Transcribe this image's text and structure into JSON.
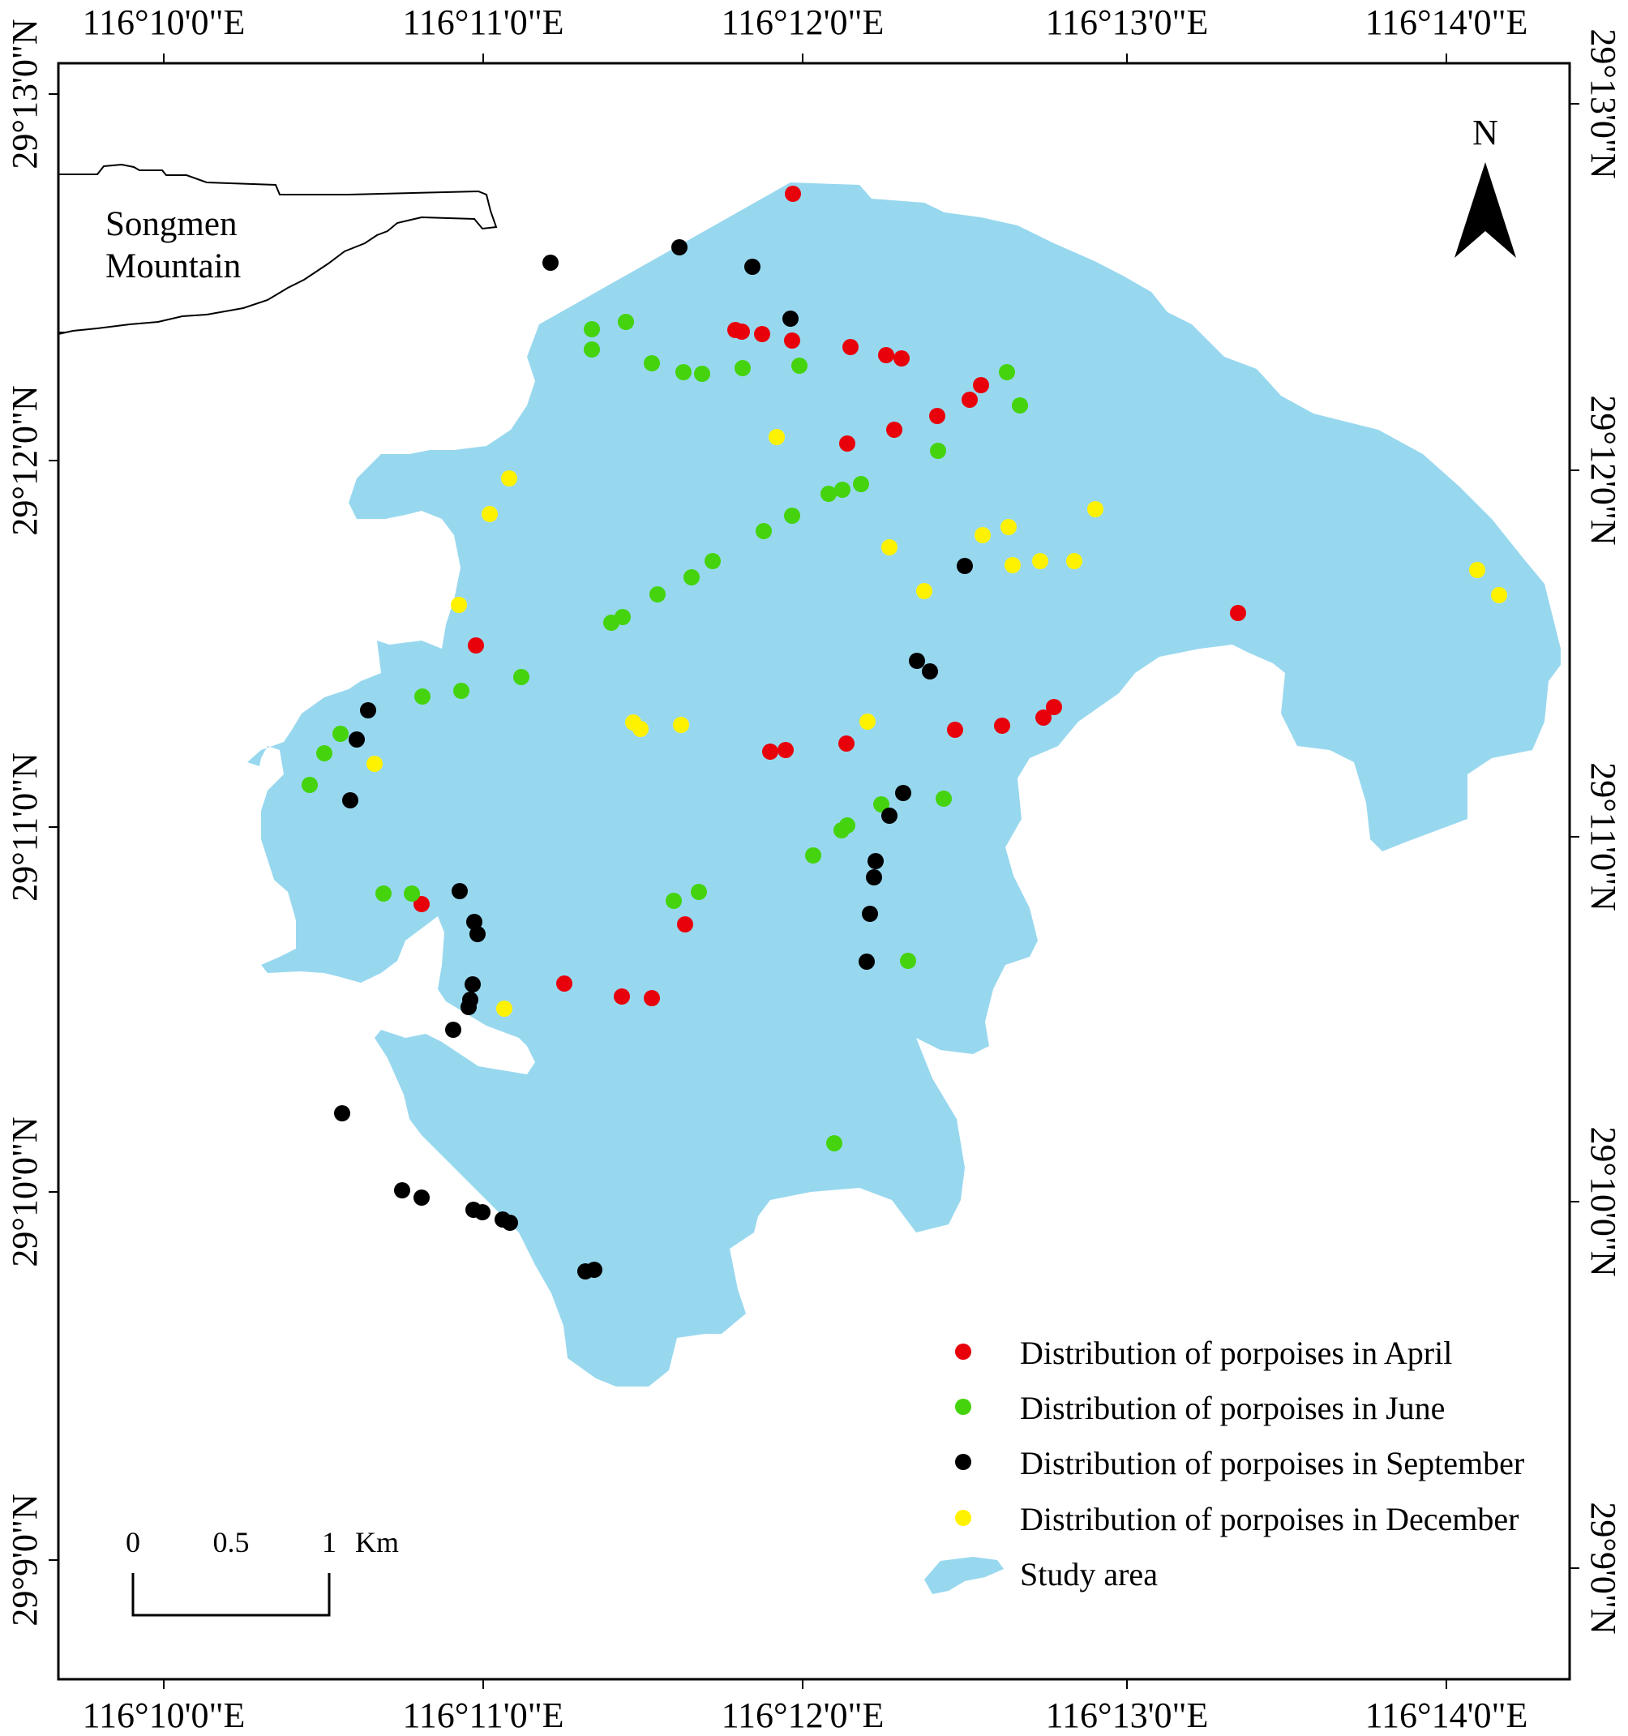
{
  "map": {
    "place_name_line1": "Songmen",
    "place_name_line2": "Mountain",
    "north_label": "N",
    "study_area_color": "#98d8ef",
    "longitude_ticks": [
      "116°10'0\"E",
      "116°11'0\"E",
      "116°12'0\"E",
      "116°13'0\"E",
      "116°14'0\"E"
    ],
    "latitude_ticks": [
      "29°13'0\"N",
      "29°12'0\"N",
      "29°11'0\"N",
      "29°10'0\"N",
      "29°9'0\"N"
    ],
    "scale_bar": {
      "labels": [
        "0",
        "0.5",
        "1"
      ],
      "unit": "Km"
    },
    "legend": [
      {
        "label": "Distribution of porpoises in April",
        "color": "#e8000b",
        "symbol": "dot"
      },
      {
        "label": "Distribution of porpoises in June",
        "color": "#44d30c",
        "symbol": "dot"
      },
      {
        "label": "Distribution of porpoises in September",
        "color": "#000000",
        "symbol": "dot"
      },
      {
        "label": "Distribution of porpoises in December",
        "color": "#fff200",
        "symbol": "dot"
      },
      {
        "label": "Study area",
        "color": "#98d8ef",
        "symbol": "area"
      }
    ]
  }
}
